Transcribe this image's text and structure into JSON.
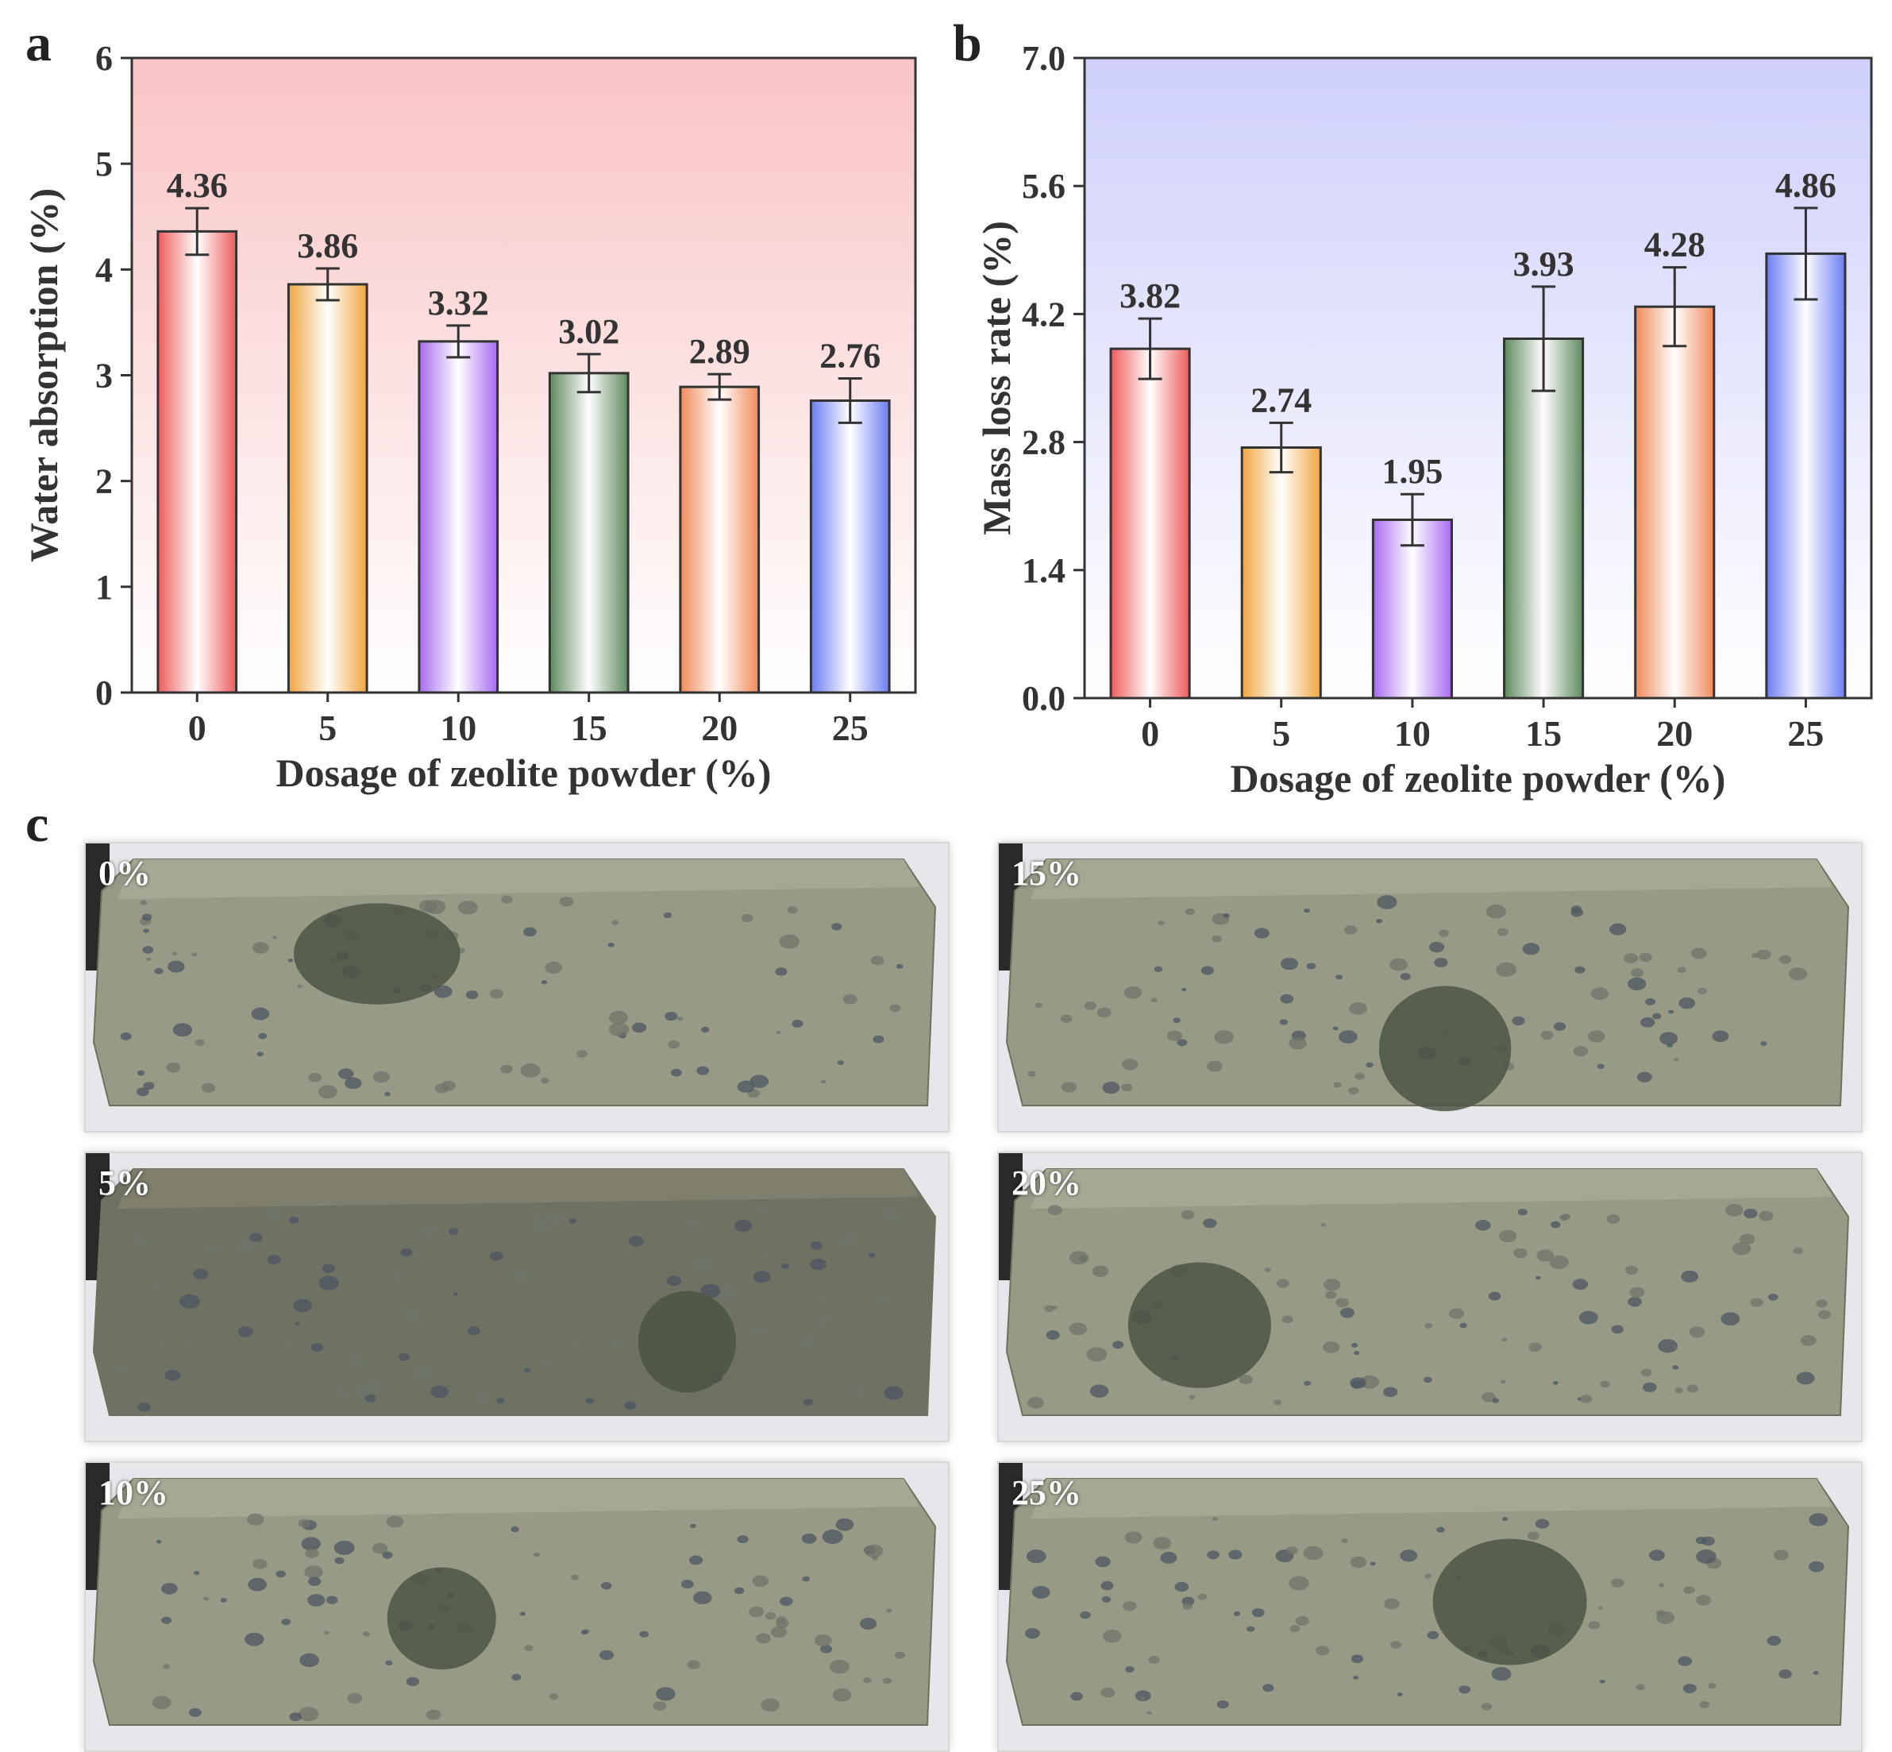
{
  "panels": {
    "a": "a",
    "b": "b",
    "c": "c"
  },
  "chart_data": [
    {
      "type": "bar",
      "panel": "a",
      "categories": [
        "0",
        "5",
        "10",
        "15",
        "20",
        "25"
      ],
      "values": [
        4.36,
        3.86,
        3.32,
        3.02,
        2.89,
        2.76
      ],
      "errors": [
        0.22,
        0.15,
        0.15,
        0.18,
        0.12,
        0.21
      ],
      "value_labels": [
        "4.36",
        "3.86",
        "3.32",
        "3.02",
        "2.89",
        "2.76"
      ],
      "ylim": [
        0,
        6
      ],
      "yticks": [
        "0",
        "1",
        "2",
        "3",
        "4",
        "5",
        "6"
      ],
      "ytick_values": [
        0,
        1,
        2,
        3,
        4,
        5,
        6
      ],
      "xlabel": "Dosage of zeolite powder (%)",
      "ylabel": "Water absorption (%)",
      "background": "#f9c4c4",
      "bar_colors": [
        "#ef5b5b",
        "#f0a640",
        "#a86bf0",
        "#5e8a5e",
        "#f08a5a",
        "#6b7cf0"
      ]
    },
    {
      "type": "bar",
      "panel": "b",
      "categories": [
        "0",
        "5",
        "10",
        "15",
        "20",
        "25"
      ],
      "values": [
        3.82,
        2.74,
        1.95,
        3.93,
        4.28,
        4.86
      ],
      "errors": [
        0.33,
        0.27,
        0.28,
        0.57,
        0.43,
        0.5
      ],
      "value_labels": [
        "3.82",
        "2.74",
        "1.95",
        "3.93",
        "4.28",
        "4.86"
      ],
      "ylim": [
        0,
        7
      ],
      "yticks": [
        "0.0",
        "1.4",
        "2.8",
        "4.2",
        "5.6",
        "7.0"
      ],
      "ytick_values": [
        0,
        1.4,
        2.8,
        4.2,
        5.6,
        7.0
      ],
      "xlabel": "Dosage of zeolite powder (%)",
      "ylabel": "Mass loss rate (%)",
      "background": "#cfd0fb",
      "bar_colors": [
        "#ef5b5b",
        "#f0a640",
        "#a86bf0",
        "#5e8a5e",
        "#f08a5a",
        "#6b7cf0"
      ]
    }
  ],
  "photos": [
    {
      "label": "0%",
      "x": 0,
      "y": 0
    },
    {
      "label": "15%",
      "x": 1,
      "y": 0
    },
    {
      "label": "5%",
      "x": 0,
      "y": 1
    },
    {
      "label": "20%",
      "x": 1,
      "y": 1
    },
    {
      "label": "10%",
      "x": 0,
      "y": 2
    },
    {
      "label": "25%",
      "x": 1,
      "y": 2
    }
  ]
}
